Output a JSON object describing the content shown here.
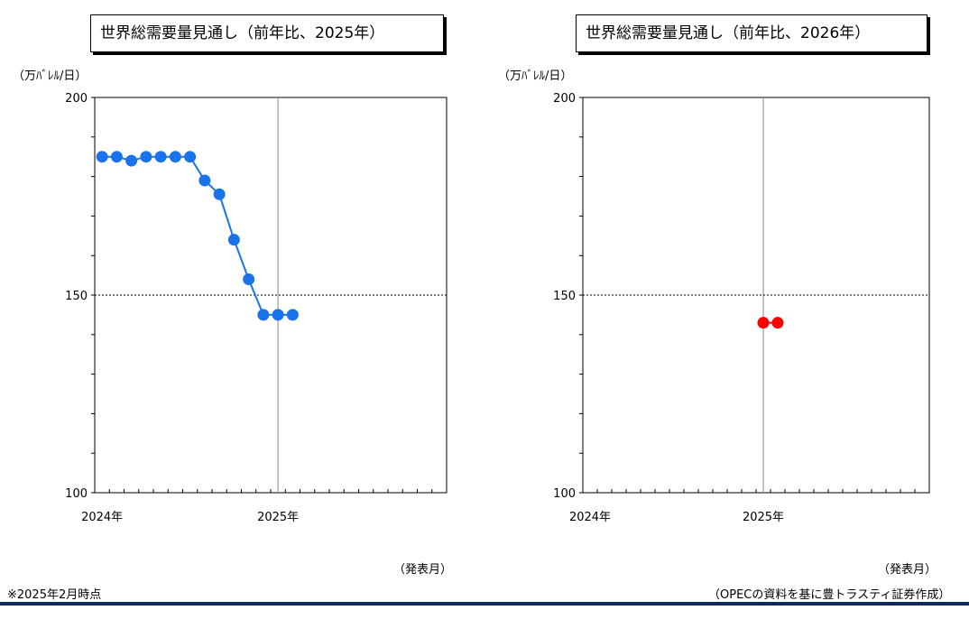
{
  "chart_data": [
    {
      "type": "line",
      "title": "世界総需要量見通し（前年比、2025年）",
      "ylabel": "（万ﾊﾞﾚﾙ/日）",
      "xlabel": "（発表月）",
      "ylim": [
        100,
        200
      ],
      "yticks": [
        "200",
        "150",
        "100"
      ],
      "xtick_labels": [
        {
          "label": "2024年",
          "month": 0
        },
        {
          "label": "2025年",
          "month": 12
        }
      ],
      "reference_line": 150,
      "color": "#1a73e8",
      "x": [
        "2024-01",
        "2024-02",
        "2024-03",
        "2024-04",
        "2024-05",
        "2024-06",
        "2024-07",
        "2024-08",
        "2024-09",
        "2024-10",
        "2024-11",
        "2024-12",
        "2025-01",
        "2025-02"
      ],
      "values": [
        185,
        185,
        184,
        185,
        185,
        185,
        185,
        179,
        175.5,
        164,
        154,
        145,
        145,
        145
      ]
    },
    {
      "type": "line",
      "title": "世界総需要量見通し（前年比、2026年）",
      "ylabel": "（万ﾊﾞﾚﾙ/日）",
      "xlabel": "（発表月）",
      "ylim": [
        100,
        200
      ],
      "yticks": [
        "200",
        "150",
        "100"
      ],
      "xtick_labels": [
        {
          "label": "2024年",
          "month": 0
        },
        {
          "label": "2025年",
          "month": 12
        }
      ],
      "reference_line": 150,
      "color": "#ff0000",
      "x": [
        "2025-01",
        "2025-02"
      ],
      "values": [
        143,
        143
      ]
    }
  ],
  "footnote": "※2025年2月時点",
  "source": "（OPECの資料を基に豊トラスティ証券作成）"
}
